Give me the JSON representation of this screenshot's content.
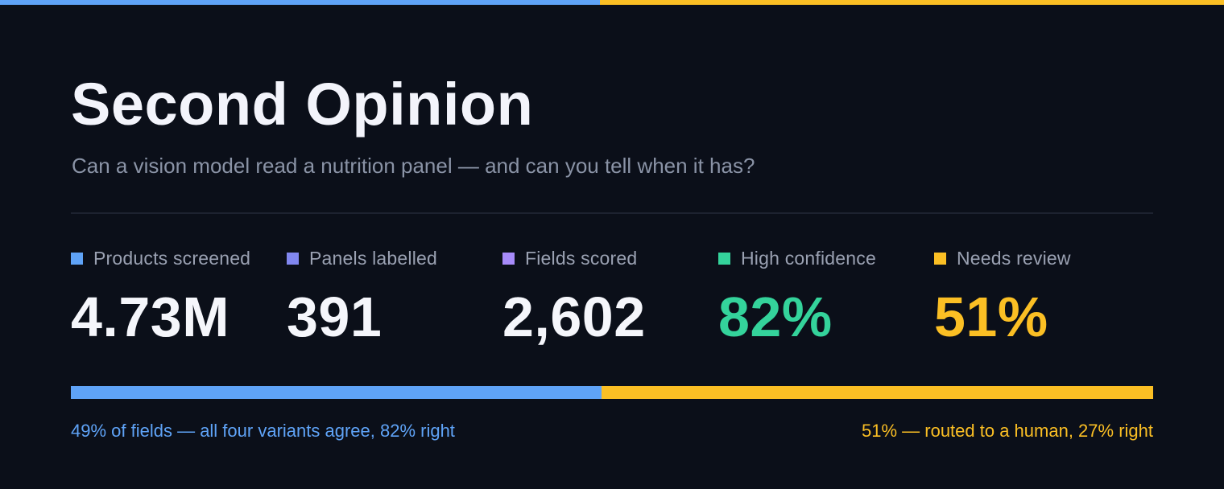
{
  "colors": {
    "background": "#0b0f19",
    "blue": "#5fa3f7",
    "indigo": "#8187f0",
    "violet": "#a78bfa",
    "green": "#34d39b",
    "amber": "#fbbf24",
    "title": "#f3f4fb",
    "value": "#f5f6fb"
  },
  "header": {
    "title": "Second Opinion",
    "subtitle": "Can a vision model read a nutrition panel — and can you tell when it has?"
  },
  "stats": [
    {
      "label": "Products screened",
      "value": "4.73M",
      "swatch_color": "#5fa3f7",
      "value_color": "#f5f6fb"
    },
    {
      "label": "Panels labelled",
      "value": "391",
      "swatch_color": "#8187f0",
      "value_color": "#f5f6fb"
    },
    {
      "label": "Fields scored",
      "value": "2,602",
      "swatch_color": "#a78bfa",
      "value_color": "#f5f6fb"
    },
    {
      "label": "High confidence",
      "value": "82%",
      "swatch_color": "#34d39b",
      "value_color": "#34d39b"
    },
    {
      "label": "Needs review",
      "value": "51%",
      "swatch_color": "#fbbf24",
      "value_color": "#fbbf24"
    }
  ],
  "split": {
    "agree_fraction": 0.49,
    "review_fraction": 0.51,
    "agree_caption": "49% of fields — all four variants agree, 82% right",
    "review_caption": "51% — routed to a human, 27% right"
  }
}
